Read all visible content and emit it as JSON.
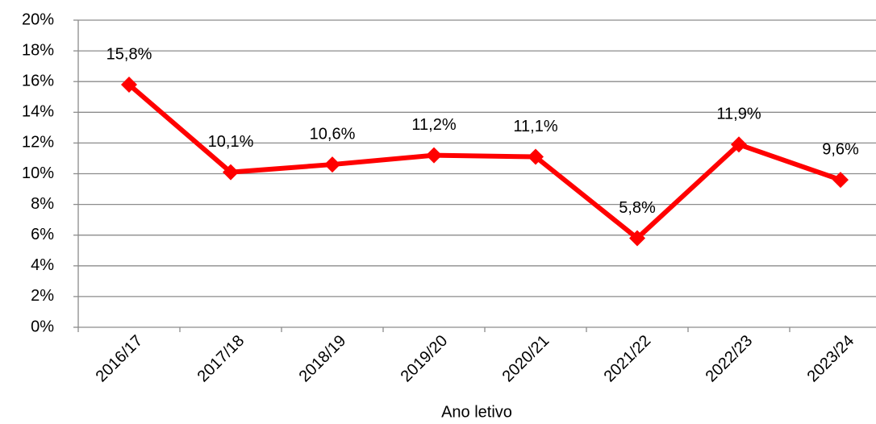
{
  "chart_data": {
    "type": "line",
    "x_label": "Ano letivo",
    "categories": [
      "2016/17",
      "2017/18",
      "2018/19",
      "2019/20",
      "2020/21",
      "2021/22",
      "2022/23",
      "2023/24"
    ],
    "series": [
      {
        "name": null,
        "color": "#ff0000",
        "values": [
          15.8,
          10.1,
          10.6,
          11.2,
          11.1,
          5.8,
          11.9,
          9.6
        ],
        "value_labels": [
          "15,8%",
          "10,1%",
          "10,6%",
          "11,2%",
          "11,1%",
          "5,8%",
          "11,9%",
          "9,6%"
        ]
      }
    ],
    "ylim": [
      0,
      20
    ],
    "yticks": [
      {
        "value": 0,
        "label": "0%"
      },
      {
        "value": 2,
        "label": "2%"
      },
      {
        "value": 4,
        "label": "4%"
      },
      {
        "value": 6,
        "label": "6%"
      },
      {
        "value": 8,
        "label": "8%"
      },
      {
        "value": 10,
        "label": "10%"
      },
      {
        "value": 12,
        "label": "12%"
      },
      {
        "value": 14,
        "label": "14%"
      },
      {
        "value": 16,
        "label": "16%"
      },
      {
        "value": 18,
        "label": "18%"
      },
      {
        "value": 20,
        "label": "20%"
      }
    ],
    "grid": true
  }
}
